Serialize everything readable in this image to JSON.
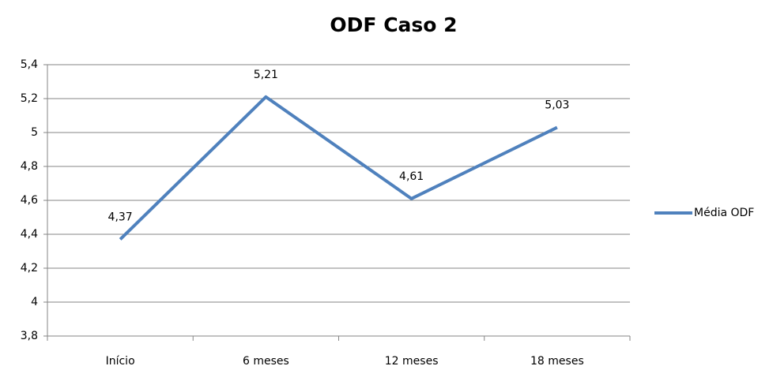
{
  "chart_data": {
    "type": "line",
    "title": "ODF Caso 2",
    "categories": [
      "Início",
      "6 meses",
      "12 meses",
      "18 meses"
    ],
    "series": [
      {
        "name": "Média ODF",
        "color": "#4f81bd",
        "values": [
          4.37,
          5.21,
          4.61,
          5.03
        ],
        "value_labels": [
          "4,37",
          "5,21",
          "4,61",
          "5,03"
        ]
      }
    ],
    "ylim": [
      3.8,
      5.4
    ],
    "yticks": [
      {
        "value": 3.8,
        "label": "3,8"
      },
      4,
      {
        "value": 4.2,
        "label": "4,2"
      },
      {
        "value": 4.4,
        "label": "4,4"
      },
      {
        "value": 4.6,
        "label": "4,6"
      },
      {
        "value": 4.8,
        "label": "4,8"
      },
      5,
      {
        "value": 5.2,
        "label": "5,2"
      },
      {
        "value": 5.4,
        "label": "5,4"
      }
    ],
    "grid": true,
    "legend": "right"
  }
}
